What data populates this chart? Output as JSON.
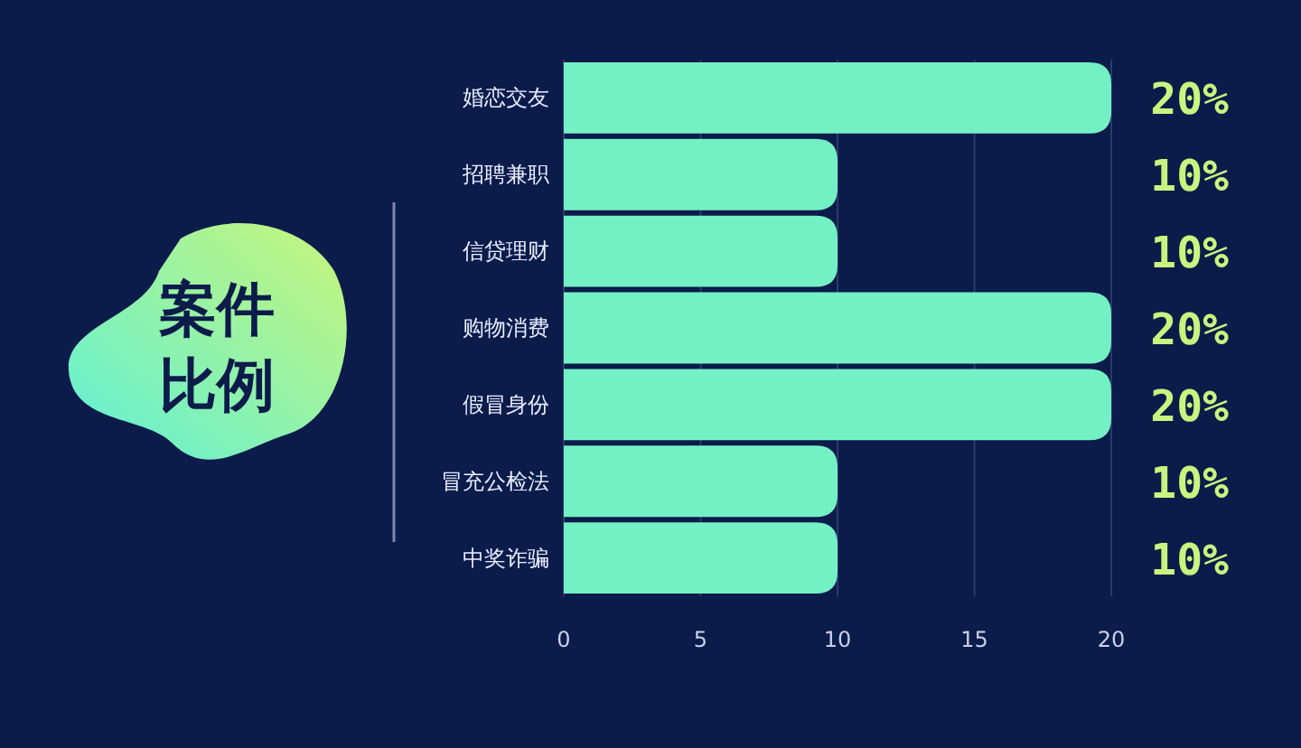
{
  "chart_data": {
    "type": "bar",
    "orientation": "horizontal",
    "title": "案件比例",
    "categories": [
      "婚恋交友",
      "招聘兼职",
      "信贷理财",
      "购物消费",
      "假冒身份",
      "冒充公检法",
      "中奖诈骗"
    ],
    "values": [
      20,
      10,
      10,
      20,
      20,
      10,
      10
    ],
    "value_labels": [
      "20%",
      "10%",
      "10%",
      "20%",
      "20%",
      "10%",
      "10%"
    ],
    "color": "#74f1c4",
    "xlim": [
      0,
      20
    ],
    "xticks": [
      0,
      5,
      10,
      15,
      20
    ],
    "grid": "x"
  }
}
